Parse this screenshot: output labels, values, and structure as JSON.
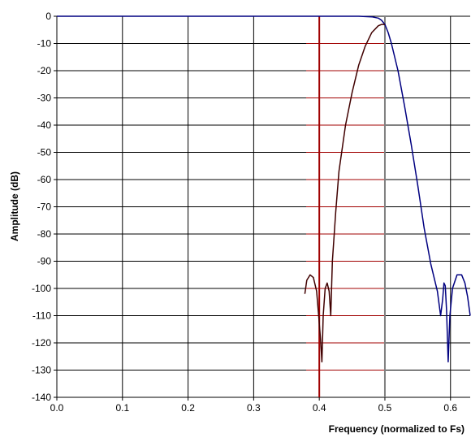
{
  "chart_data": {
    "type": "line",
    "title": "",
    "xlabel": "Frequency (normalized to Fs)",
    "ylabel": "Amplitude (dB)",
    "xlim": [
      0,
      0.63
    ],
    "ylim": [
      -140,
      0
    ],
    "x_ticks": [
      0.0,
      0.1,
      0.2,
      0.3,
      0.4,
      0.5,
      0.6
    ],
    "x_tick_labels": [
      "0.0",
      "0.1",
      "0.2",
      "0.3",
      "0.4",
      "0.5",
      "0.6"
    ],
    "y_ticks": [
      0,
      -10,
      -20,
      -30,
      -40,
      -50,
      -60,
      -70,
      -80,
      -90,
      -100,
      -110,
      -120,
      -130,
      -140
    ],
    "y_tick_labels": [
      "0",
      "-10",
      "-20",
      "-30",
      "-40",
      "-50",
      "-60",
      "-70",
      "-80",
      "-90",
      "-100",
      "-110",
      "-120",
      "-130",
      "-140"
    ],
    "grid": true,
    "markers": [
      {
        "axis": "x",
        "value": 0.4,
        "color": "#a00000"
      },
      {
        "axis": "x",
        "value": 0.5,
        "color": "#808080"
      }
    ],
    "hlines": {
      "color": "#a00000",
      "x_from": 0.38,
      "x_to": 0.5,
      "y_values": [
        -10,
        -20,
        -30,
        -40,
        -50,
        -60,
        -70,
        -80,
        -90,
        -100,
        -110,
        -120,
        -130
      ]
    },
    "series": [
      {
        "color": "#000080",
        "x": [
          0.0,
          0.1,
          0.2,
          0.3,
          0.4,
          0.46,
          0.48,
          0.49,
          0.495,
          0.5,
          0.505,
          0.51,
          0.52,
          0.53,
          0.54,
          0.55,
          0.56,
          0.57,
          0.58,
          0.585,
          0.588,
          0.59,
          0.592,
          0.594,
          0.5965,
          0.599,
          0.603,
          0.61,
          0.617,
          0.622,
          0.626,
          0.63
        ],
        "y": [
          0,
          0,
          0,
          0,
          0,
          0,
          -0.2,
          -0.7,
          -1.5,
          -3,
          -6,
          -10,
          -20,
          -33,
          -47,
          -62,
          -78,
          -91,
          -101,
          -110,
          -104,
          -98,
          -99,
          -108,
          -127,
          -110,
          -100,
          -95,
          -95,
          -98,
          -103,
          -110
        ]
      },
      {
        "color": "#400000",
        "x": [
          0.378,
          0.381,
          0.386,
          0.391,
          0.396,
          0.399,
          0.402,
          0.404,
          0.406,
          0.409,
          0.412,
          0.415,
          0.4175,
          0.42,
          0.425,
          0.43,
          0.44,
          0.45,
          0.46,
          0.47,
          0.48,
          0.49,
          0.495,
          0.5
        ],
        "y": [
          -102,
          -97,
          -95,
          -96,
          -101,
          -110,
          -119,
          -127,
          -110,
          -100,
          -98,
          -101,
          -110,
          -90,
          -72,
          -57,
          -40,
          -28,
          -18,
          -11,
          -6,
          -3.5,
          -3,
          -3
        ]
      }
    ]
  }
}
